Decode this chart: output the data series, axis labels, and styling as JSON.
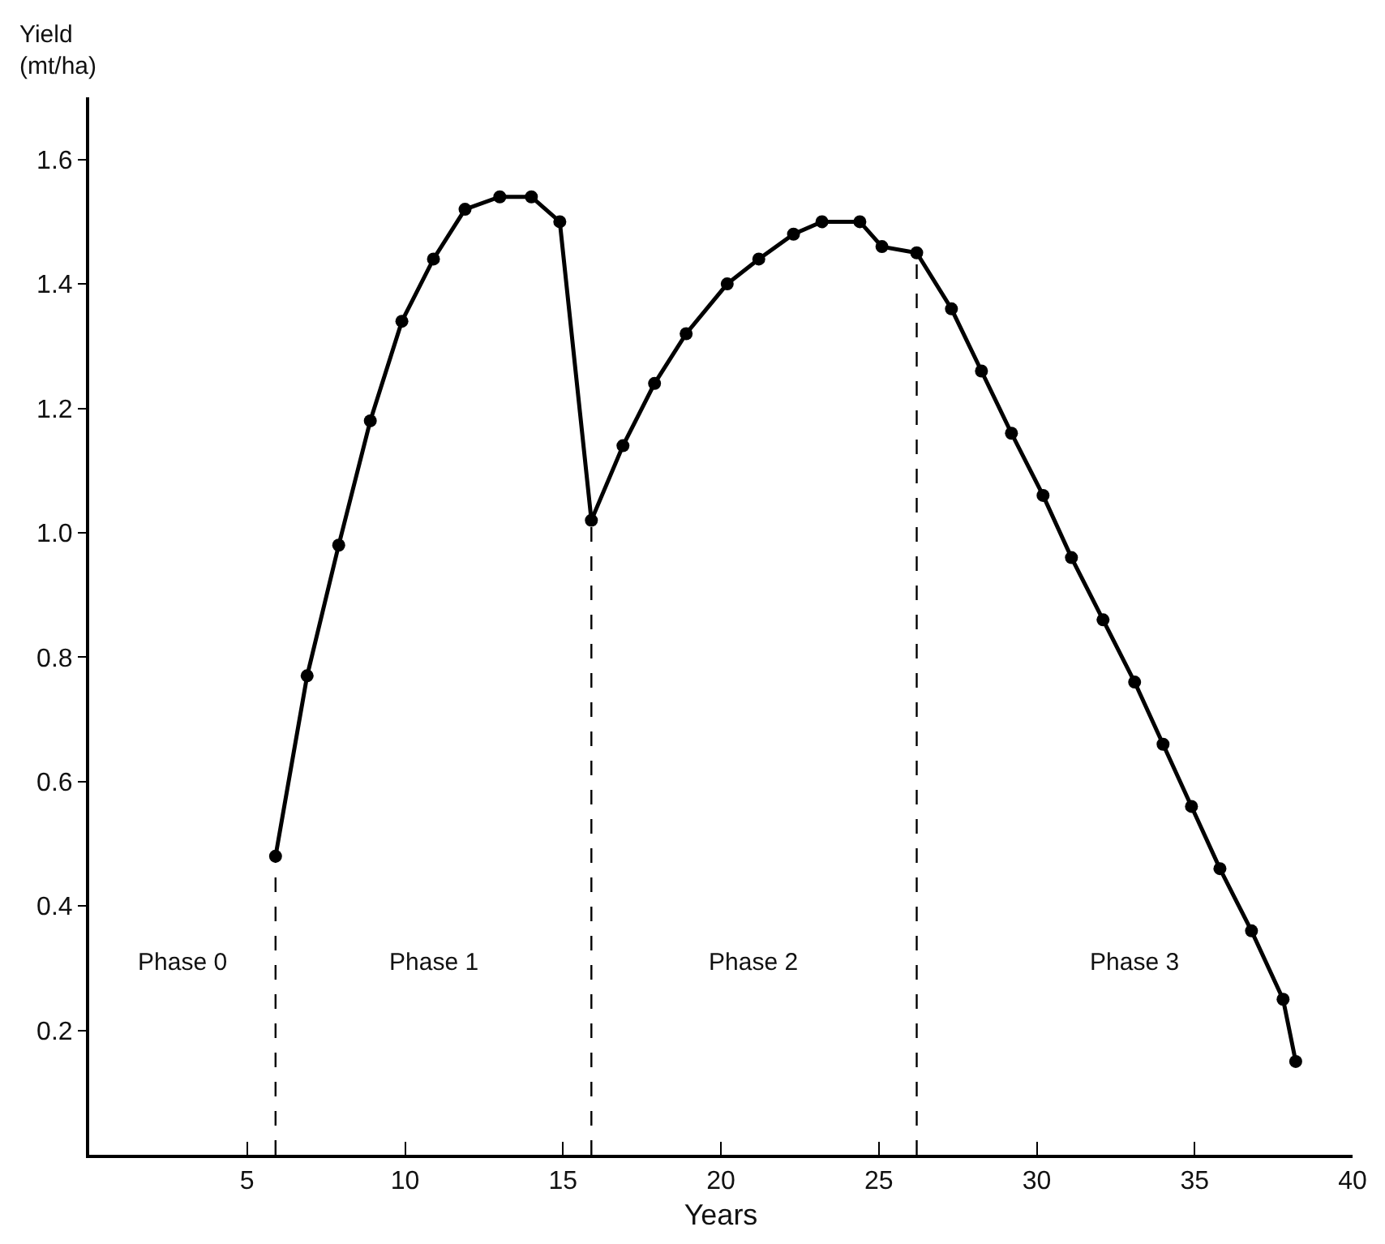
{
  "chart_data": {
    "type": "line",
    "xlabel": "Years",
    "ylabel": "Yield\n(mt/ha)",
    "x": [
      5.9,
      6.9,
      7.9,
      8.9,
      9.9,
      10.9,
      11.9,
      13.0,
      14.0,
      14.9,
      15.9,
      16.9,
      17.9,
      18.9,
      20.2,
      21.2,
      22.3,
      23.2,
      24.4,
      25.1,
      26.2,
      27.3,
      28.25,
      29.2,
      30.2,
      31.1,
      32.1,
      33.1,
      34.0,
      34.9,
      35.8,
      36.8,
      37.8,
      38.2
    ],
    "series": [
      {
        "color": "#000000",
        "values": [
          0.48,
          0.77,
          0.98,
          1.18,
          1.34,
          1.44,
          1.52,
          1.54,
          1.54,
          1.5,
          1.02,
          1.14,
          1.24,
          1.32,
          1.4,
          1.44,
          1.48,
          1.5,
          1.5,
          1.46,
          1.45,
          1.36,
          1.26,
          1.16,
          1.06,
          0.96,
          0.86,
          0.76,
          0.66,
          0.56,
          0.46,
          0.36,
          0.25,
          0.15
        ]
      }
    ],
    "marker": "circle",
    "line_style": "solid",
    "xlim": [
      0,
      40
    ],
    "xticks": [
      5,
      10,
      15,
      20,
      25,
      30,
      35,
      40
    ],
    "ylim": [
      0,
      1.7
    ],
    "yticks": [
      0.2,
      0.4,
      0.6,
      0.8,
      {
        "value": 1,
        "label": "1.0"
      },
      1.2,
      1.4,
      1.6
    ],
    "ref_lines": [
      {
        "axis": "x",
        "value": 5.9,
        "line_style": "dashed",
        "color": "#000000"
      },
      {
        "axis": "x",
        "value": 15.9,
        "line_style": "dashed",
        "color": "#000000"
      },
      {
        "axis": "x",
        "value": 26.2,
        "line_style": "dashed",
        "color": "#000000"
      }
    ],
    "annotations": [
      "Phase 0",
      "Phase 1",
      "Phase 2",
      "Phase 3"
    ]
  }
}
